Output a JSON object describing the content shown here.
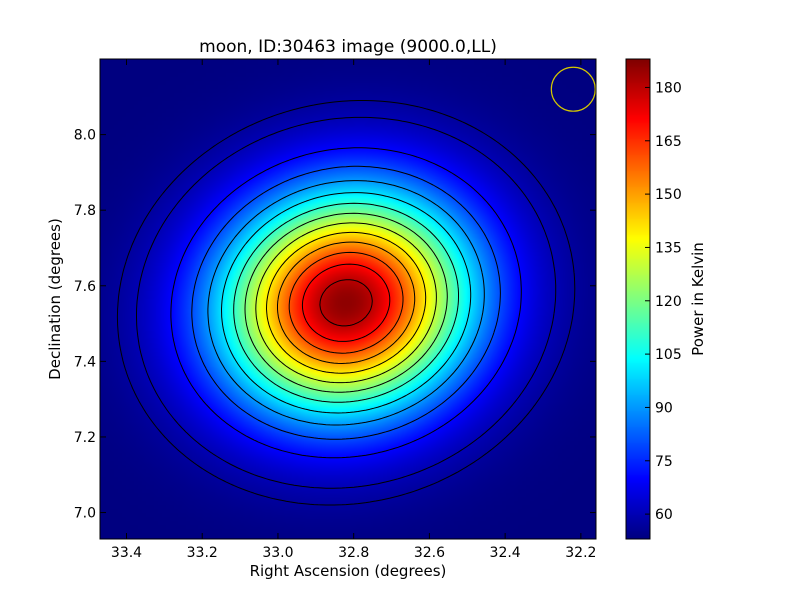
{
  "chart_data": {
    "type": "heatmap",
    "title": "moon, ID:30463 image (9000.0,LL)",
    "xlabel": "Right Ascension (degrees)",
    "ylabel": "Declination (degrees)",
    "x_axis_reversed": true,
    "xlim": [
      33.47,
      32.16
    ],
    "ylim": [
      6.93,
      8.2
    ],
    "xticks": [
      {
        "value": 33.4,
        "label": "33.4"
      },
      {
        "value": 33.2,
        "label": "33.2"
      },
      {
        "value": 33.0,
        "label": "33.0"
      },
      {
        "value": 32.8,
        "label": "32.8"
      },
      {
        "value": 32.6,
        "label": "32.6"
      },
      {
        "value": 32.4,
        "label": "32.4"
      },
      {
        "value": 32.2,
        "label": "32.2"
      }
    ],
    "yticks": [
      {
        "value": 7.0,
        "label": "7.0"
      },
      {
        "value": 7.2,
        "label": "7.2"
      },
      {
        "value": 7.4,
        "label": "7.4"
      },
      {
        "value": 7.6,
        "label": "7.6"
      },
      {
        "value": 7.8,
        "label": "7.8"
      },
      {
        "value": 8.0,
        "label": "8.0"
      }
    ],
    "colorbar": {
      "label": "Power in Kelvin",
      "range": [
        53,
        188
      ],
      "colormap": "jet",
      "ticks": [
        {
          "value": 60,
          "label": "60"
        },
        {
          "value": 75,
          "label": "75"
        },
        {
          "value": 90,
          "label": "90"
        },
        {
          "value": 105,
          "label": "105"
        },
        {
          "value": 120,
          "label": "120"
        },
        {
          "value": 135,
          "label": "135"
        },
        {
          "value": 150,
          "label": "150"
        },
        {
          "value": 165,
          "label": "165"
        },
        {
          "value": 180,
          "label": "180"
        }
      ]
    },
    "source": {
      "center_ra": 32.82,
      "center_dec": 7.555,
      "peak_kelvin": 186,
      "background_kelvin": 53,
      "sigma_ra": 0.23,
      "sigma_dec": 0.2,
      "tilt_deg": -15
    },
    "contour_levels": [
      57,
      60,
      70,
      80,
      90,
      100,
      110,
      120,
      130,
      140,
      150,
      160,
      170,
      180
    ],
    "beam_circle": {
      "ra": 32.22,
      "dec": 8.12,
      "radius_deg": 0.058,
      "color": "#d4c800"
    },
    "colors": {
      "contour": "#000000",
      "frame": "#000000"
    }
  }
}
